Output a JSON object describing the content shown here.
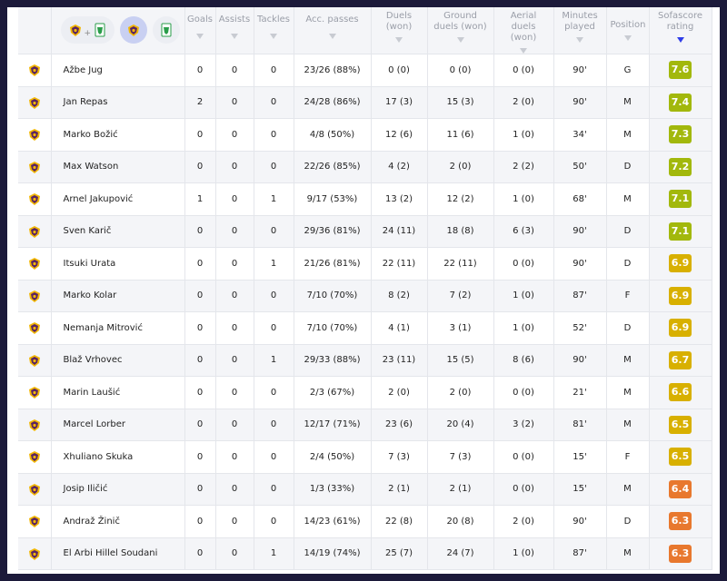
{
  "header": {
    "team_filters": [
      {
        "label": "both-teams",
        "icons": [
          "maribor-crest-icon",
          "olimpija-crest-icon"
        ]
      },
      {
        "label": "maribor",
        "selected": true
      },
      {
        "label": "olimpija"
      }
    ],
    "plus": "+",
    "columns": [
      "Goals",
      "Assists",
      "Tackles",
      "Acc. passes",
      "Duels (won)",
      "Ground duels (won)",
      "Aerial duels (won)",
      "Minutes played",
      "Position",
      "Sofascore rating"
    ],
    "sorted_column": "Sofascore rating"
  },
  "colors": {
    "rating_green": "#a2b80c",
    "rating_yellow": "#d8b000",
    "rating_orange": "#e8782e",
    "sort_arrow": "#2f3de8"
  },
  "rows": [
    {
      "name": "Ažbe Jug",
      "goals": "0",
      "assists": "0",
      "tackles": "0",
      "passes": "23/26 (88%)",
      "duels": "0 (0)",
      "ground": "0 (0)",
      "aerial": "0 (0)",
      "minutes": "90'",
      "position": "G",
      "rating": "7.6"
    },
    {
      "name": "Jan Repas",
      "goals": "2",
      "assists": "0",
      "tackles": "0",
      "passes": "24/28 (86%)",
      "duels": "17 (3)",
      "ground": "15 (3)",
      "aerial": "2 (0)",
      "minutes": "90'",
      "position": "M",
      "rating": "7.4"
    },
    {
      "name": "Marko Božić",
      "goals": "0",
      "assists": "0",
      "tackles": "0",
      "passes": "4/8 (50%)",
      "duels": "12 (6)",
      "ground": "11 (6)",
      "aerial": "1 (0)",
      "minutes": "34'",
      "position": "M",
      "rating": "7.3"
    },
    {
      "name": "Max Watson",
      "goals": "0",
      "assists": "0",
      "tackles": "0",
      "passes": "22/26 (85%)",
      "duels": "4 (2)",
      "ground": "2 (0)",
      "aerial": "2 (2)",
      "minutes": "50'",
      "position": "D",
      "rating": "7.2"
    },
    {
      "name": "Arnel Jakupović",
      "goals": "1",
      "assists": "0",
      "tackles": "1",
      "passes": "9/17 (53%)",
      "duels": "13 (2)",
      "ground": "12 (2)",
      "aerial": "1 (0)",
      "minutes": "68'",
      "position": "M",
      "rating": "7.1"
    },
    {
      "name": "Sven Karič",
      "goals": "0",
      "assists": "0",
      "tackles": "0",
      "passes": "29/36 (81%)",
      "duels": "24 (11)",
      "ground": "18 (8)",
      "aerial": "6 (3)",
      "minutes": "90'",
      "position": "D",
      "rating": "7.1"
    },
    {
      "name": "Itsuki Urata",
      "goals": "0",
      "assists": "0",
      "tackles": "1",
      "passes": "21/26 (81%)",
      "duels": "22 (11)",
      "ground": "22 (11)",
      "aerial": "0 (0)",
      "minutes": "90'",
      "position": "D",
      "rating": "6.9"
    },
    {
      "name": "Marko Kolar",
      "goals": "0",
      "assists": "0",
      "tackles": "0",
      "passes": "7/10 (70%)",
      "duels": "8 (2)",
      "ground": "7 (2)",
      "aerial": "1 (0)",
      "minutes": "87'",
      "position": "F",
      "rating": "6.9"
    },
    {
      "name": "Nemanja Mitrović",
      "goals": "0",
      "assists": "0",
      "tackles": "0",
      "passes": "7/10 (70%)",
      "duels": "4 (1)",
      "ground": "3 (1)",
      "aerial": "1 (0)",
      "minutes": "52'",
      "position": "D",
      "rating": "6.9"
    },
    {
      "name": "Blaž Vrhovec",
      "goals": "0",
      "assists": "0",
      "tackles": "1",
      "passes": "29/33 (88%)",
      "duels": "23 (11)",
      "ground": "15 (5)",
      "aerial": "8 (6)",
      "minutes": "90'",
      "position": "M",
      "rating": "6.7"
    },
    {
      "name": "Marin Laušić",
      "goals": "0",
      "assists": "0",
      "tackles": "0",
      "passes": "2/3 (67%)",
      "duels": "2 (0)",
      "ground": "2 (0)",
      "aerial": "0 (0)",
      "minutes": "21'",
      "position": "M",
      "rating": "6.6"
    },
    {
      "name": "Marcel Lorber",
      "goals": "0",
      "assists": "0",
      "tackles": "0",
      "passes": "12/17 (71%)",
      "duels": "23 (6)",
      "ground": "20 (4)",
      "aerial": "3 (2)",
      "minutes": "81'",
      "position": "M",
      "rating": "6.5"
    },
    {
      "name": "Xhuliano Skuka",
      "goals": "0",
      "assists": "0",
      "tackles": "0",
      "passes": "2/4 (50%)",
      "duels": "7 (3)",
      "ground": "7 (3)",
      "aerial": "0 (0)",
      "minutes": "15'",
      "position": "F",
      "rating": "6.5"
    },
    {
      "name": "Josip Iličić",
      "goals": "0",
      "assists": "0",
      "tackles": "0",
      "passes": "1/3 (33%)",
      "duels": "2 (1)",
      "ground": "2 (1)",
      "aerial": "0 (0)",
      "minutes": "15'",
      "position": "M",
      "rating": "6.4"
    },
    {
      "name": "Andraž Žinič",
      "goals": "0",
      "assists": "0",
      "tackles": "0",
      "passes": "14/23 (61%)",
      "duels": "22 (8)",
      "ground": "20 (8)",
      "aerial": "2 (0)",
      "minutes": "90'",
      "position": "D",
      "rating": "6.3"
    },
    {
      "name": "El Arbi Hillel Soudani",
      "goals": "0",
      "assists": "0",
      "tackles": "1",
      "passes": "14/19 (74%)",
      "duels": "25 (7)",
      "ground": "24 (7)",
      "aerial": "1 (0)",
      "minutes": "87'",
      "position": "M",
      "rating": "6.3"
    }
  ]
}
